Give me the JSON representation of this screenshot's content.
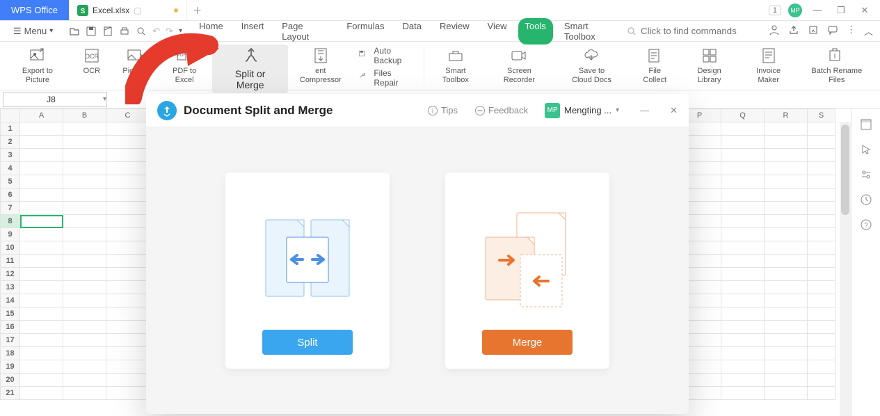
{
  "brand": "WPS Office",
  "tab": {
    "filename": "Excel.xlsx",
    "icon_color": "#24a35a"
  },
  "titlebar": {
    "counter": "1",
    "avatar": "MP"
  },
  "menu_button": "Menu",
  "menu_tabs": [
    "Home",
    "Insert",
    "Page Layout",
    "Formulas",
    "Data",
    "Review",
    "View",
    "Tools",
    "Smart Toolbox"
  ],
  "menu_active_index": 7,
  "search_placeholder": "Click to find commands",
  "ribbon": {
    "items": [
      {
        "label": "Export to Picture",
        "icon": "image-out"
      },
      {
        "label": "OCR",
        "icon": "ocr"
      },
      {
        "label": "Picture to",
        "icon": "pic2"
      },
      {
        "label": "PDF to Excel",
        "icon": "pdf2xls"
      },
      {
        "label": "Split or Merge",
        "icon": "splitmerge",
        "selected": true
      },
      {
        "label": "ent Compressor",
        "icon": "compress"
      },
      {
        "mini": [
          {
            "label": "Auto Backup",
            "icon": "save"
          },
          {
            "label": "Files Repair",
            "icon": "wrench"
          }
        ]
      },
      {
        "label": "Smart Toolbox",
        "icon": "toolbox"
      },
      {
        "label": "Screen Recorder",
        "icon": "camera"
      },
      {
        "label": "Save to Cloud Docs",
        "icon": "cloud"
      },
      {
        "label": "File Collect",
        "icon": "filecollect"
      },
      {
        "label": "Design Library",
        "icon": "designlib"
      },
      {
        "label": "Invoice Maker",
        "icon": "invoice"
      },
      {
        "label": "Batch Rename Files",
        "icon": "rename"
      }
    ]
  },
  "namebox": "J8",
  "columns_left": [
    "A",
    "B",
    "C"
  ],
  "columns_right": [
    "P",
    "Q",
    "R",
    "S"
  ],
  "row_count": 21,
  "selected_row": 8,
  "dialog": {
    "title": "Document Split and Merge",
    "tips": "Tips",
    "feedback": "Feedback",
    "user_short": "MP",
    "user_name": "Mengting ...",
    "split_label": "Split",
    "merge_label": "Merge",
    "colors": {
      "split_btn": "#3aa6f0",
      "merge_btn": "#e8752f",
      "split_illus": "#4a90e2",
      "merge_illus": "#e8752f"
    }
  },
  "arrow_color": "#e43b2c"
}
